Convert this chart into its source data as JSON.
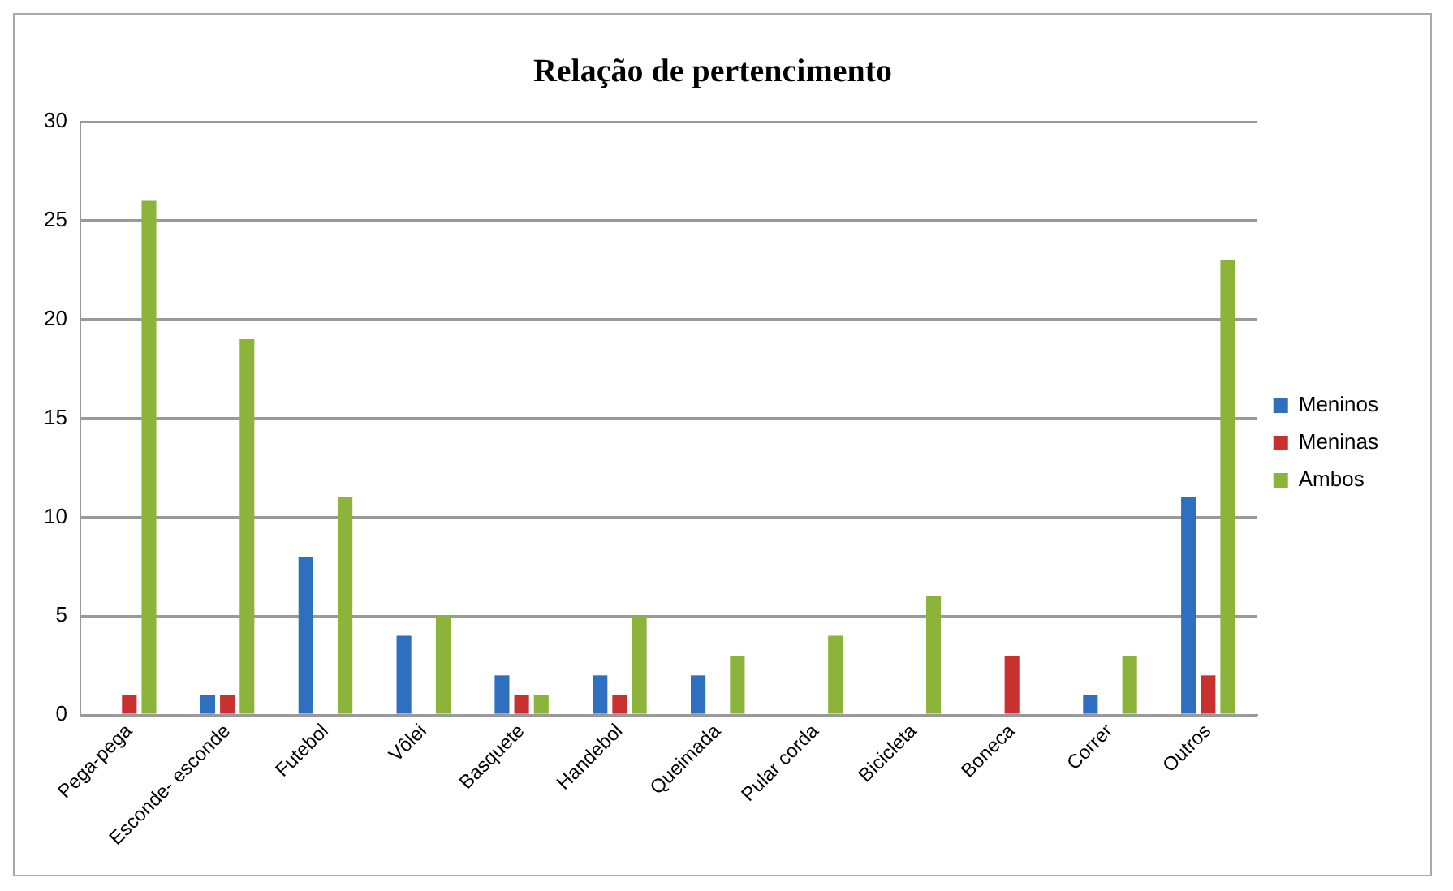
{
  "chart_data": {
    "type": "bar",
    "title": "Relação de pertencimento",
    "categories": [
      "Pega-pega",
      "Esconde- esconde",
      "Futebol",
      "Vôlei",
      "Basquete",
      "Handebol",
      "Queimada",
      "Pular corda",
      "Bicicleta",
      "Boneca",
      "Correr",
      "Outros"
    ],
    "series": [
      {
        "name": "Meninos",
        "color": "#2e6fc0",
        "values": [
          0,
          1,
          8,
          4,
          2,
          2,
          2,
          0,
          0,
          0,
          1,
          11
        ]
      },
      {
        "name": "Meninas",
        "color": "#c8312f",
        "values": [
          1,
          1,
          0,
          0,
          1,
          1,
          0,
          0,
          0,
          3,
          0,
          2
        ]
      },
      {
        "name": "Ambos",
        "color": "#8db43a",
        "values": [
          26,
          19,
          11,
          5,
          1,
          5,
          3,
          4,
          6,
          0,
          3,
          23
        ]
      }
    ],
    "ylim": [
      0,
      30
    ],
    "yticks": [
      0,
      5,
      10,
      15,
      20,
      25,
      30
    ],
    "grid": "y",
    "legend": "right"
  }
}
